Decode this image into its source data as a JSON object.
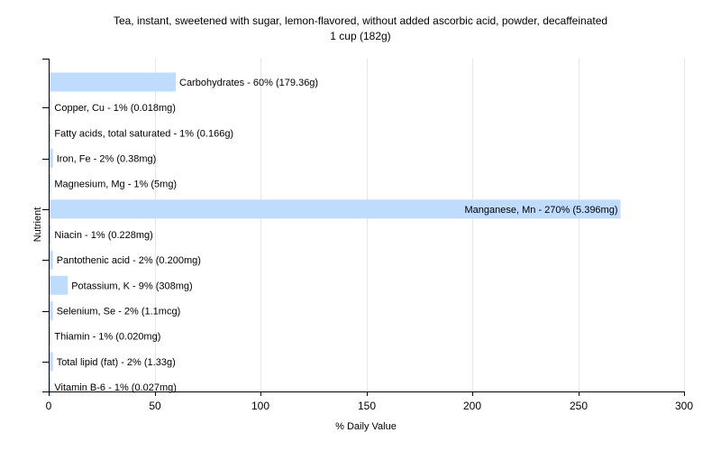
{
  "chart_data": {
    "type": "bar",
    "orientation": "horizontal",
    "title": "Tea, instant, sweetened with sugar, lemon-flavored, without added ascorbic acid, powder,  decaffeinated",
    "subtitle": "1 cup (182g)",
    "xlabel": "% Daily Value",
    "ylabel": "Nutrient",
    "xlim": [
      0,
      300
    ],
    "xticks": [
      0,
      50,
      100,
      150,
      200,
      250,
      300
    ],
    "grid": true,
    "bar_color": "#bfdcff",
    "categories": [
      "Carbohydrates",
      "Copper, Cu",
      "Fatty acids, total saturated",
      "Iron, Fe",
      "Magnesium, Mg",
      "Manganese, Mn",
      "Niacin",
      "Pantothenic acid",
      "Potassium, K",
      "Selenium, Se",
      "Thiamin",
      "Total lipid (fat)",
      "Vitamin B-6"
    ],
    "values": [
      60,
      1,
      1,
      2,
      1,
      270,
      1,
      2,
      9,
      2,
      1,
      2,
      1
    ],
    "labels": [
      "Carbohydrates - 60% (179.36g)",
      "Copper, Cu - 1% (0.018mg)",
      "Fatty acids, total saturated - 1% (0.166g)",
      "Iron, Fe - 2% (0.38mg)",
      "Magnesium, Mg - 1% (5mg)",
      "Manganese, Mn - 270% (5.396mg)",
      "Niacin - 1% (0.228mg)",
      "Pantothenic acid - 2% (0.200mg)",
      "Potassium, K - 9% (308mg)",
      "Selenium, Se - 2% (1.1mcg)",
      "Thiamin - 1% (0.020mg)",
      "Total lipid (fat) - 2% (1.33g)",
      "Vitamin B-6 - 1% (0.027mg)"
    ]
  }
}
